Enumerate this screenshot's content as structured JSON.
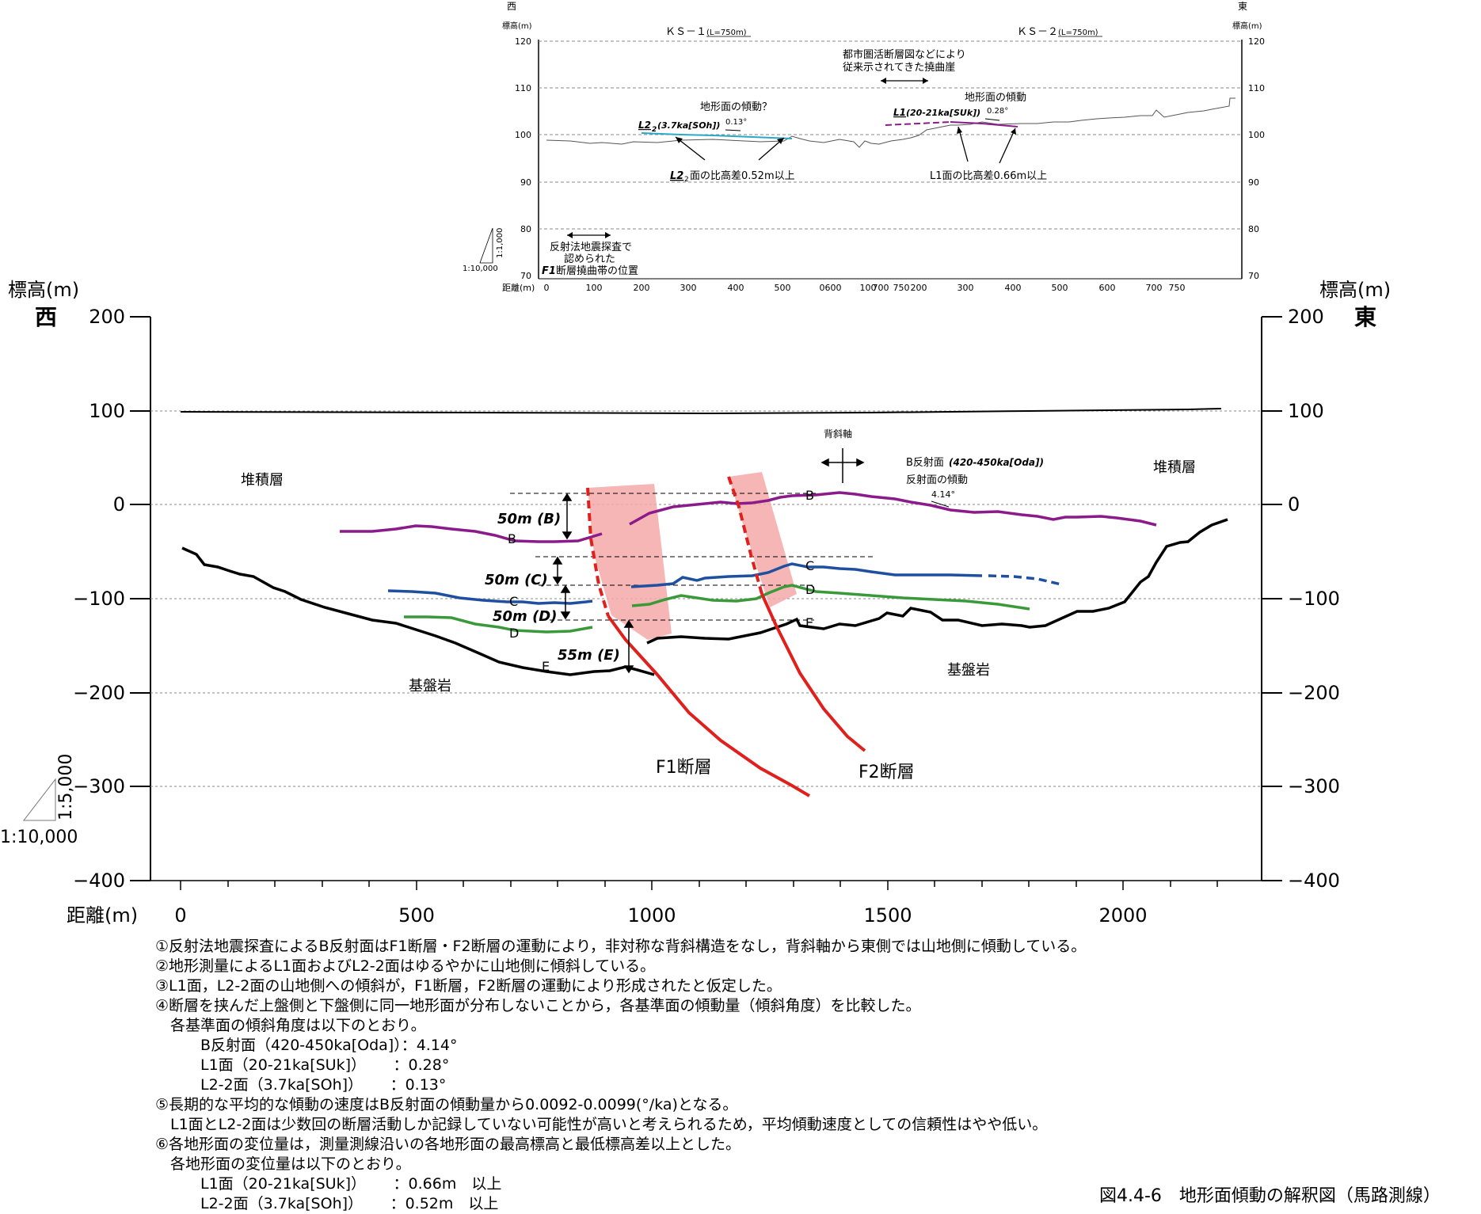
{
  "top_profile": {
    "west_label": "西",
    "east_label": "東",
    "elev_unit_label": "標高(m)",
    "y_ticks": [
      "120",
      "110",
      "100",
      "90",
      "80",
      "70"
    ],
    "ks1_label": "ＫＳ－１",
    "ks1_length": "(L=750m)",
    "ks2_label": "ＫＳ－２",
    "ks2_length": "(L=750m)",
    "ann_fault_scarp_1": "都市圏活断層図などにより",
    "ann_fault_scarp_2": "従来示されてきた撓曲崖",
    "ann_tilt_q": "地形面の傾動？",
    "ann_tilt": "地形面の傾動",
    "l22_label": "L2",
    "l22_sub": "2",
    "l22_age": "(3.7ka[SOh])",
    "l1_label": "L1",
    "l1_age": "(20-21ka[SUk])",
    "angle_013": "0.13°",
    "angle_028": "0.28°",
    "l22_diff_a": "L2",
    "l22_diff_sub": "2",
    "l22_diff_b": "面の比高差0.52m以上",
    "l1_diff": "L1面の比高差0.66m以上",
    "seismic_1": "反射法地震探査で",
    "seismic_2": "認められた",
    "seismic_3a": "F1",
    "seismic_3b": " 断層撓曲帯の位置",
    "scale_h": "1:10,000",
    "scale_v": "1:1,000",
    "distance_label": "距離(m)",
    "x_ticks": [
      "0",
      "100",
      "200",
      "300",
      "400",
      "500",
      "0",
      "600",
      "100",
      "700",
      "750",
      "200",
      "300",
      "400",
      "500",
      "600",
      "700",
      "750"
    ]
  },
  "main": {
    "elev_label": "標高(m)",
    "west_label": "西",
    "east_label": "東",
    "y_ticks": [
      "200",
      "100",
      "0",
      "−100",
      "−200",
      "−300",
      "−400"
    ],
    "x_ticks": [
      "0",
      "500",
      "1000",
      "1500",
      "2000"
    ],
    "distance_label": "距離(m)",
    "sediment_left": "堆積層",
    "sediment_right": "堆積層",
    "bedrock_left": "基盤岩",
    "bedrock_right": "基盤岩",
    "anticline_axis": "背斜軸",
    "b_reflector_a": "B反射面",
    "b_reflector_b": "(420-450ka[Oda])",
    "reflector_tilt": "反射面の傾動",
    "angle_414": "4.14°",
    "offset_b": "50m (B)",
    "offset_c": "50m (C)",
    "offset_d": "50m (D)",
    "offset_e": "55m (E)",
    "lbl_B": "B",
    "lbl_C": "C",
    "lbl_D": "D",
    "lbl_E": "E",
    "f1_label": "F1断層",
    "f2_label": "F2断層",
    "scale_v": "1:5,000",
    "scale_h": "1:10,000"
  },
  "colors": {
    "surface_B": "#8b1a8b",
    "surface_C": "#1f4fa0",
    "surface_D": "#3a9a3a",
    "fault": "#e0201c",
    "fault_zone": "#f5a9a9",
    "l22_line": "#29a9c9",
    "l1_line": "#8b1a8b"
  },
  "notes": [
    "①反射法地震探査によるB反射面はF1断層・F2断層の運動により，非対称な背斜構造をなし，背斜軸から東側では山地側に傾動している。",
    "②地形測量によるL1面およびL2-2面はゆるやかに山地側に傾斜している。",
    "③L1面，L2-2面の山地側への傾斜が，F1断層，F2断層の運動により形成されたと仮定した。",
    "④断層を挟んだ上盤側と下盤側に同一地形面が分布しないことから，各基準面の傾動量（傾斜角度）を比較した。",
    "　各基準面の傾斜角度は以下のとおり。",
    "　　　B反射面（420-450ka[Oda]）：4.14°",
    "　　　L1面（20-21ka[SUk]）　　 ：0.28°",
    "　　　L2-2面（3.7ka[SOh]）　　 ：0.13°",
    "⑤長期的な平均的な傾動の速度はB反射面の傾動量から0.0092-0.0099(°/ka)となる。",
    "　L1面とL2-2面は少数回の断層活動しか記録していない可能性が高いと考えられるため，平均傾動速度としての信頼性はやや低い。",
    "⑥各地形面の変位量は，測量測線沿いの各地形面の最高標高と最低標高差以上とした。",
    "　各地形面の変位量は以下のとおり。",
    "　　　L1面（20-21ka[SUk]）　　 ：0.66m　以上",
    "　　　L2-2面（3.7ka[SOh]）　　 ：0.52m　以上"
  ],
  "caption": "図4.4-6　地形面傾動の解釈図（馬路測線）"
}
